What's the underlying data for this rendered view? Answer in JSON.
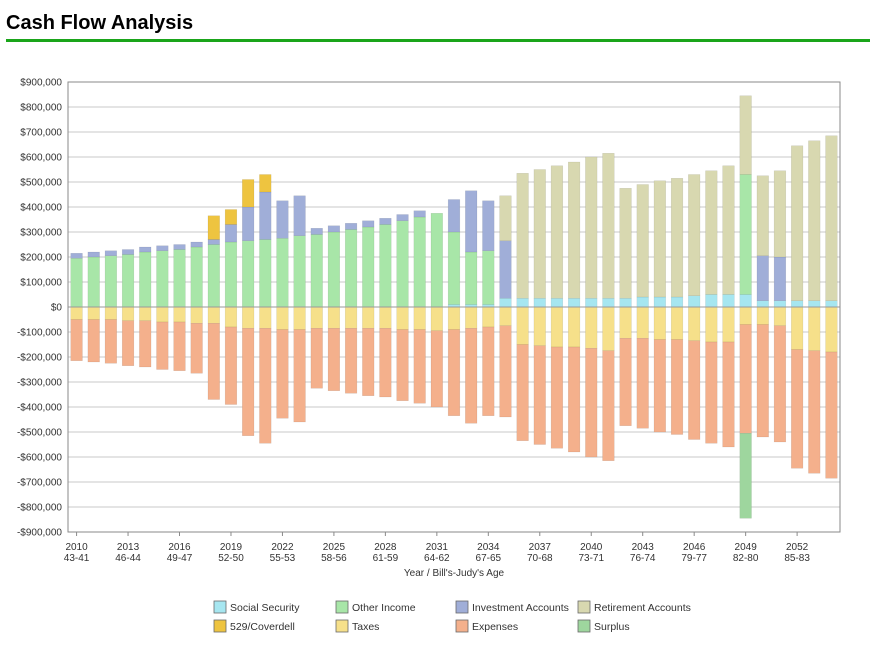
{
  "page": {
    "title": "Cash Flow Analysis"
  },
  "colors": {
    "header_rule": "#1aa51a",
    "grid": "#c8c8c8",
    "axis": "#8a8a8a"
  },
  "chart_data": {
    "type": "bar",
    "stacked": true,
    "title": "",
    "xlabel": "Year / Bill's-Judy's Age",
    "ylabel": "",
    "ylim": [
      -900000,
      900000
    ],
    "yticks": [
      900000,
      800000,
      700000,
      600000,
      500000,
      400000,
      300000,
      200000,
      100000,
      0,
      -100000,
      -200000,
      -300000,
      -400000,
      -500000,
      -600000,
      -700000,
      -800000,
      -900000
    ],
    "ytick_labels": [
      "$900,000",
      "$800,000",
      "$700,000",
      "$600,000",
      "$500,000",
      "$400,000",
      "$300,000",
      "$200,000",
      "$100,000",
      "$0",
      "-$100,000",
      "-$200,000",
      "-$300,000",
      "-$400,000",
      "-$500,000",
      "-$600,000",
      "-$700,000",
      "-$800,000",
      "-$900,000"
    ],
    "grid": true,
    "legend_position": "bottom",
    "categories": [
      "2010",
      "2011",
      "2012",
      "2013",
      "2014",
      "2015",
      "2016",
      "2017",
      "2018",
      "2019",
      "2020",
      "2021",
      "2022",
      "2023",
      "2024",
      "2025",
      "2026",
      "2027",
      "2028",
      "2029",
      "2030",
      "2031",
      "2032",
      "2033",
      "2034",
      "2035",
      "2036",
      "2037",
      "2038",
      "2039",
      "2040",
      "2041",
      "2042",
      "2043",
      "2044",
      "2045",
      "2046",
      "2047",
      "2048",
      "2049",
      "2050",
      "2051",
      "2052",
      "2053",
      "2054"
    ],
    "x_tick_labels": [
      {
        "year": "2010",
        "ages": "43-41"
      },
      {
        "year": "2013",
        "ages": "46-44"
      },
      {
        "year": "2016",
        "ages": "49-47"
      },
      {
        "year": "2019",
        "ages": "52-50"
      },
      {
        "year": "2022",
        "ages": "55-53"
      },
      {
        "year": "2025",
        "ages": "58-56"
      },
      {
        "year": "2028",
        "ages": "61-59"
      },
      {
        "year": "2031",
        "ages": "64-62"
      },
      {
        "year": "2034",
        "ages": "67-65"
      },
      {
        "year": "2037",
        "ages": "70-68"
      },
      {
        "year": "2040",
        "ages": "73-71"
      },
      {
        "year": "2043",
        "ages": "76-74"
      },
      {
        "year": "2046",
        "ages": "79-77"
      },
      {
        "year": "2049",
        "ages": "82-80"
      },
      {
        "year": "2052",
        "ages": "85-83"
      }
    ],
    "series": [
      {
        "name": "Social Security",
        "color": "#a6e6f0",
        "values": [
          0,
          0,
          0,
          0,
          0,
          0,
          0,
          0,
          0,
          0,
          0,
          0,
          0,
          0,
          0,
          0,
          0,
          0,
          0,
          0,
          0,
          0,
          10000,
          10000,
          10000,
          35000,
          35000,
          35000,
          35000,
          35000,
          35000,
          35000,
          35000,
          40000,
          40000,
          40000,
          45000,
          50000,
          50000,
          50000,
          25000,
          25000,
          25000,
          25000,
          25000
        ]
      },
      {
        "name": "Other Income",
        "color": "#a8e6a8",
        "values": [
          195000,
          200000,
          205000,
          210000,
          220000,
          225000,
          230000,
          240000,
          250000,
          260000,
          265000,
          270000,
          275000,
          285000,
          290000,
          300000,
          310000,
          320000,
          330000,
          345000,
          360000,
          375000,
          290000,
          210000,
          215000,
          0,
          0,
          0,
          0,
          0,
          0,
          0,
          0,
          0,
          0,
          0,
          0,
          0,
          0,
          480000,
          0,
          0,
          0,
          0,
          0
        ]
      },
      {
        "name": "Investment Accounts",
        "color": "#a0aed8",
        "values": [
          20000,
          20000,
          20000,
          20000,
          20000,
          20000,
          20000,
          20000,
          20000,
          70000,
          135000,
          190000,
          150000,
          160000,
          25000,
          25000,
          25000,
          25000,
          25000,
          25000,
          25000,
          0,
          130000,
          245000,
          200000,
          230000,
          0,
          0,
          0,
          0,
          0,
          0,
          0,
          0,
          0,
          0,
          0,
          0,
          0,
          0,
          180000,
          175000,
          0,
          0,
          0
        ]
      },
      {
        "name": "Retirement Accounts",
        "color": "#d8d8b0",
        "values": [
          0,
          0,
          0,
          0,
          0,
          0,
          0,
          0,
          0,
          0,
          0,
          0,
          0,
          0,
          0,
          0,
          0,
          0,
          0,
          0,
          0,
          0,
          0,
          0,
          0,
          180000,
          500000,
          515000,
          530000,
          545000,
          565000,
          580000,
          440000,
          450000,
          465000,
          475000,
          485000,
          495000,
          515000,
          315000,
          320000,
          345000,
          620000,
          640000,
          660000
        ]
      },
      {
        "name": "529/Coverdell",
        "color": "#eec440",
        "values": [
          0,
          0,
          0,
          0,
          0,
          0,
          0,
          0,
          95000,
          60000,
          110000,
          70000,
          0,
          0,
          0,
          0,
          0,
          0,
          0,
          0,
          0,
          0,
          0,
          0,
          0,
          0,
          0,
          0,
          0,
          0,
          0,
          0,
          0,
          0,
          0,
          0,
          0,
          0,
          0,
          0,
          0,
          0,
          0,
          0,
          0
        ]
      },
      {
        "name": "Taxes",
        "color": "#f6e08a",
        "values": [
          -50000,
          -50000,
          -50000,
          -55000,
          -55000,
          -60000,
          -60000,
          -65000,
          -65000,
          -80000,
          -85000,
          -85000,
          -90000,
          -90000,
          -85000,
          -85000,
          -85000,
          -85000,
          -85000,
          -90000,
          -90000,
          -95000,
          -90000,
          -85000,
          -80000,
          -75000,
          -150000,
          -155000,
          -160000,
          -160000,
          -165000,
          -175000,
          -125000,
          -125000,
          -130000,
          -130000,
          -135000,
          -140000,
          -140000,
          -70000,
          -70000,
          -75000,
          -170000,
          -175000,
          -180000
        ]
      },
      {
        "name": "Expenses",
        "color": "#f4b08c",
        "values": [
          -165000,
          -170000,
          -175000,
          -180000,
          -185000,
          -190000,
          -195000,
          -200000,
          -305000,
          -310000,
          -430000,
          -460000,
          -355000,
          -370000,
          -240000,
          -250000,
          -260000,
          -270000,
          -275000,
          -285000,
          -295000,
          -305000,
          -345000,
          -380000,
          -355000,
          -365000,
          -385000,
          -395000,
          -405000,
          -420000,
          -435000,
          -440000,
          -350000,
          -360000,
          -370000,
          -380000,
          -395000,
          -405000,
          -420000,
          -435000,
          -450000,
          -465000,
          -475000,
          -490000,
          -505000
        ]
      },
      {
        "name": "Surplus",
        "color": "#9ed69e",
        "values": [
          0,
          0,
          0,
          0,
          0,
          0,
          0,
          0,
          0,
          0,
          0,
          0,
          0,
          0,
          0,
          0,
          0,
          0,
          0,
          0,
          0,
          0,
          0,
          0,
          0,
          0,
          0,
          0,
          0,
          0,
          0,
          0,
          0,
          0,
          0,
          0,
          0,
          0,
          0,
          -340000,
          0,
          0,
          0,
          0,
          0
        ]
      }
    ]
  }
}
